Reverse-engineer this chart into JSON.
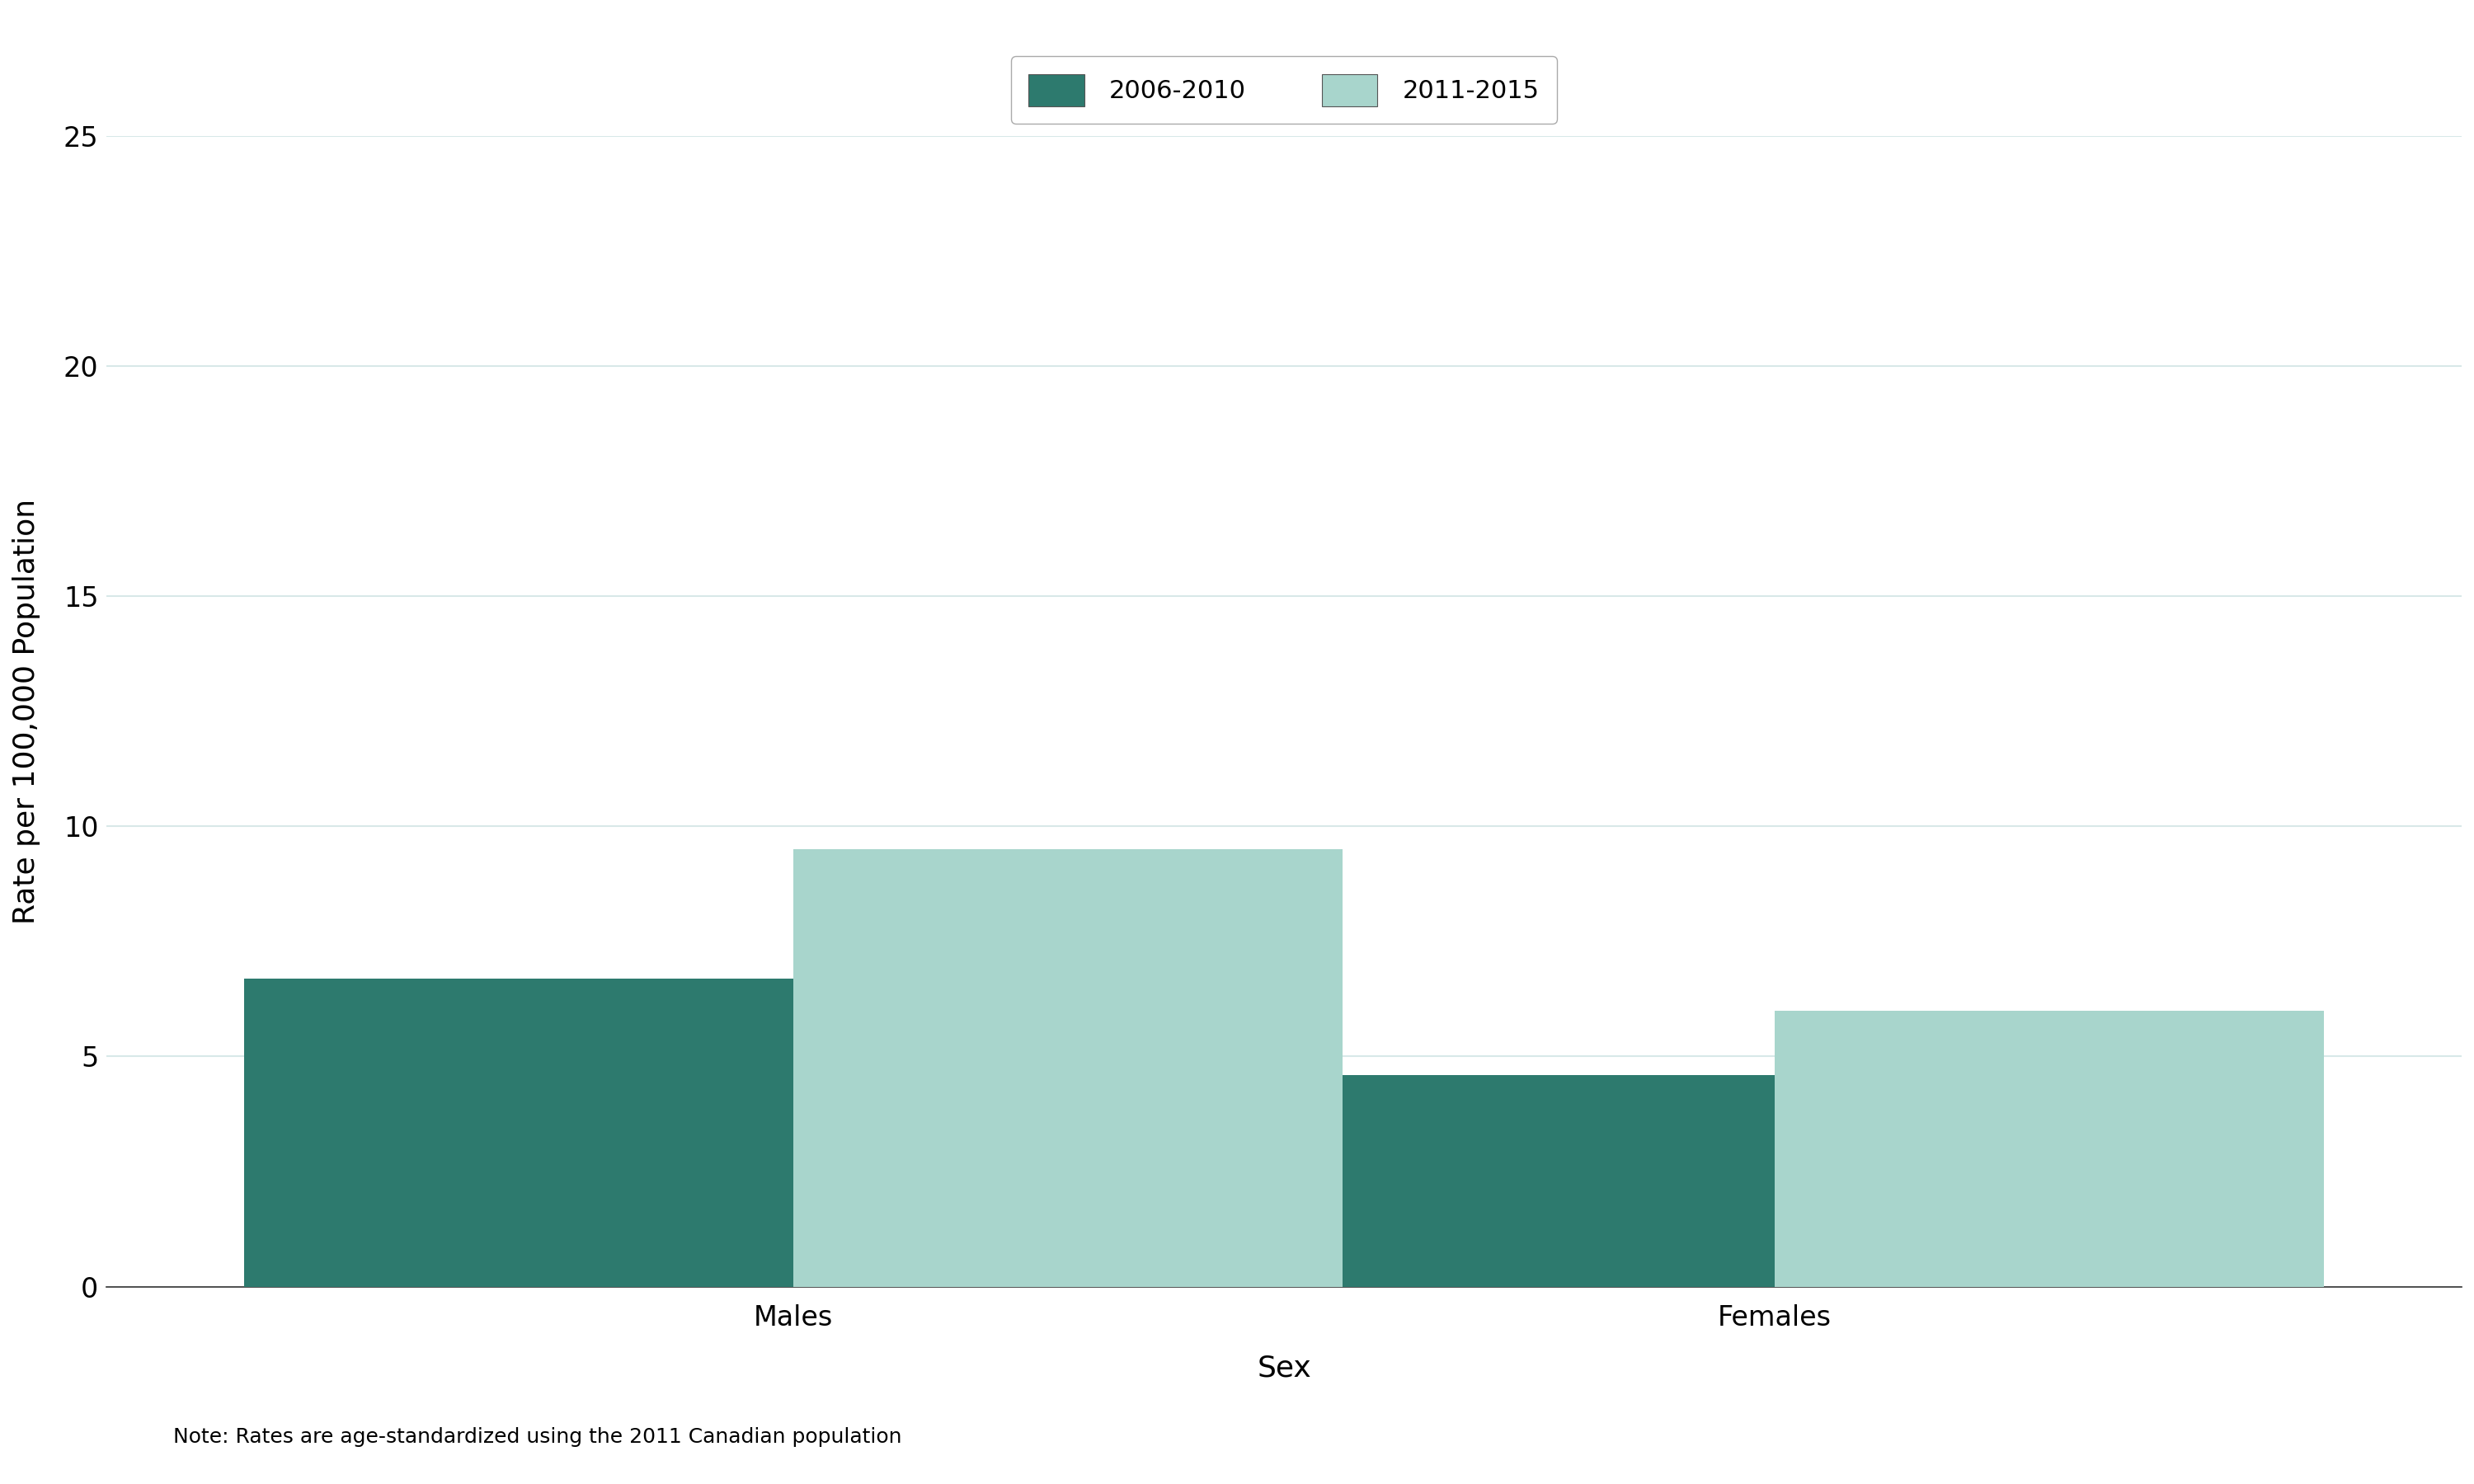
{
  "categories": [
    "Males",
    "Females"
  ],
  "series": [
    {
      "label": "2006-2010",
      "values": [
        6.7,
        4.6
      ],
      "color": "#2d7a6e"
    },
    {
      "label": "2011-2015",
      "values": [
        9.5,
        6.0
      ],
      "color": "#a8d5cc"
    }
  ],
  "ylabel": "Rate per 100,000 Population",
  "xlabel": "Sex",
  "ylim": [
    0,
    25
  ],
  "yticks": [
    0,
    5,
    10,
    15,
    20,
    25
  ],
  "note": "Note: Rates are age-standardized using the 2011 Canadian population",
  "note_color": "#000000",
  "background_color": "#ffffff",
  "bar_width": 0.28,
  "group_positions": [
    0.35,
    0.85
  ],
  "axis_label_fontsize": 26,
  "tick_fontsize": 24,
  "legend_fontsize": 22,
  "note_fontsize": 18,
  "grid_color": "#d8e8e8",
  "spine_color": "#333333"
}
